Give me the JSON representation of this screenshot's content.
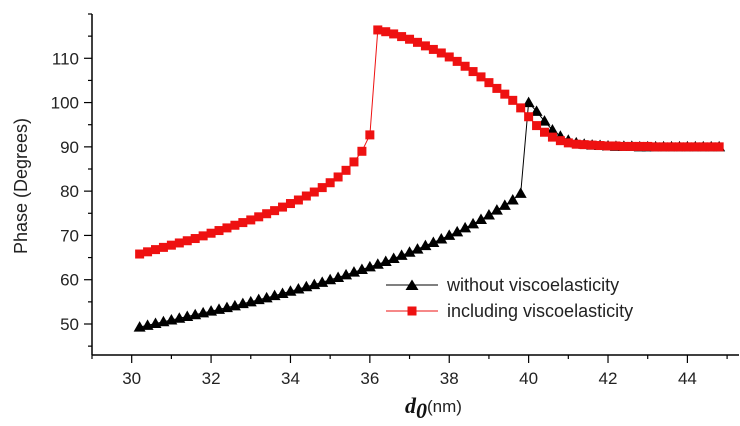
{
  "chart_data": {
    "type": "line",
    "title": "",
    "xlabel_main": "d",
    "xlabel_sub": "0",
    "xlabel_unit": "(nm)",
    "ylabel": "Phase (Degrees)",
    "xlim": [
      29,
      45.3
    ],
    "ylim": [
      43,
      120
    ],
    "x_ticks": [
      30,
      32,
      34,
      36,
      38,
      40,
      42,
      44
    ],
    "y_ticks": [
      50,
      60,
      70,
      80,
      90,
      100,
      110
    ],
    "x_minor_step": 1,
    "y_minor_step": 5,
    "grid": false,
    "legend_position": "lower-right",
    "series": [
      {
        "name": "without viscoelasticity",
        "color": "#000000",
        "marker": "triangle",
        "x": [
          30.2,
          30.4,
          30.6,
          30.8,
          31.0,
          31.2,
          31.4,
          31.6,
          31.8,
          32.0,
          32.2,
          32.4,
          32.6,
          32.8,
          33.0,
          33.2,
          33.4,
          33.6,
          33.8,
          34.0,
          34.2,
          34.4,
          34.6,
          34.8,
          35.0,
          35.2,
          35.4,
          35.6,
          35.8,
          36.0,
          36.2,
          36.4,
          36.6,
          36.8,
          37.0,
          37.2,
          37.4,
          37.6,
          37.8,
          38.0,
          38.2,
          38.4,
          38.6,
          38.8,
          39.0,
          39.2,
          39.4,
          39.6,
          39.8,
          40.0,
          40.2,
          40.4,
          40.6,
          40.8,
          41.0,
          41.2,
          41.4,
          41.6,
          41.8,
          42.0,
          42.2,
          42.4,
          42.6,
          42.8,
          43.0,
          43.2,
          43.4,
          43.6,
          43.8,
          44.0,
          44.2,
          44.4,
          44.6,
          44.8
        ],
        "y": [
          49.3,
          49.7,
          50.1,
          50.5,
          50.9,
          51.3,
          51.7,
          52.1,
          52.5,
          52.9,
          53.3,
          53.7,
          54.1,
          54.6,
          55.0,
          55.5,
          55.9,
          56.4,
          56.9,
          57.4,
          57.9,
          58.4,
          58.9,
          59.4,
          60.0,
          60.5,
          61.1,
          61.7,
          62.3,
          62.9,
          63.5,
          64.1,
          64.8,
          65.5,
          66.2,
          66.9,
          67.7,
          68.4,
          69.2,
          70.0,
          70.8,
          71.7,
          72.6,
          73.6,
          74.6,
          75.7,
          76.8,
          78.0,
          79.5,
          100.0,
          98.0,
          95.8,
          93.8,
          92.4,
          91.5,
          90.9,
          90.6,
          90.4,
          90.3,
          90.2,
          90.1,
          90.1,
          90.1,
          90.0,
          90.0,
          90.0,
          90.0,
          90.0,
          90.0,
          90.0,
          90.0,
          90.0,
          90.0,
          90.0
        ]
      },
      {
        "name": "including viscoelasticity",
        "color": "#ee1111",
        "marker": "square",
        "x": [
          30.2,
          30.4,
          30.6,
          30.8,
          31.0,
          31.2,
          31.4,
          31.6,
          31.8,
          32.0,
          32.2,
          32.4,
          32.6,
          32.8,
          33.0,
          33.2,
          33.4,
          33.6,
          33.8,
          34.0,
          34.2,
          34.4,
          34.6,
          34.8,
          35.0,
          35.2,
          35.4,
          35.6,
          35.8,
          36.0,
          36.2,
          36.4,
          36.6,
          36.8,
          37.0,
          37.2,
          37.4,
          37.6,
          37.8,
          38.0,
          38.2,
          38.4,
          38.6,
          38.8,
          39.0,
          39.2,
          39.4,
          39.6,
          39.8,
          40.0,
          40.2,
          40.4,
          40.6,
          40.8,
          41.0,
          41.2,
          41.4,
          41.6,
          41.8,
          42.0,
          42.2,
          42.4,
          42.6,
          42.8,
          43.0,
          43.2,
          43.4,
          43.6,
          43.8,
          44.0,
          44.2,
          44.4,
          44.6,
          44.8
        ],
        "y": [
          65.8,
          66.3,
          66.8,
          67.3,
          67.8,
          68.3,
          68.8,
          69.3,
          69.9,
          70.5,
          71.1,
          71.7,
          72.3,
          72.9,
          73.5,
          74.2,
          74.9,
          75.6,
          76.4,
          77.2,
          78.0,
          78.9,
          79.8,
          80.8,
          81.9,
          83.2,
          84.7,
          86.6,
          89.0,
          92.7,
          116.4,
          116.0,
          115.5,
          114.9,
          114.3,
          113.6,
          112.8,
          112.0,
          111.2,
          110.3,
          109.3,
          108.2,
          107.0,
          105.8,
          104.5,
          103.2,
          101.9,
          100.5,
          98.8,
          96.8,
          94.8,
          93.3,
          92.2,
          91.4,
          90.9,
          90.6,
          90.5,
          90.4,
          90.3,
          90.2,
          90.2,
          90.1,
          90.1,
          90.1,
          90.1,
          90.0,
          90.0,
          90.0,
          90.0,
          90.0,
          90.0,
          90.0,
          90.0,
          90.0
        ]
      }
    ]
  }
}
